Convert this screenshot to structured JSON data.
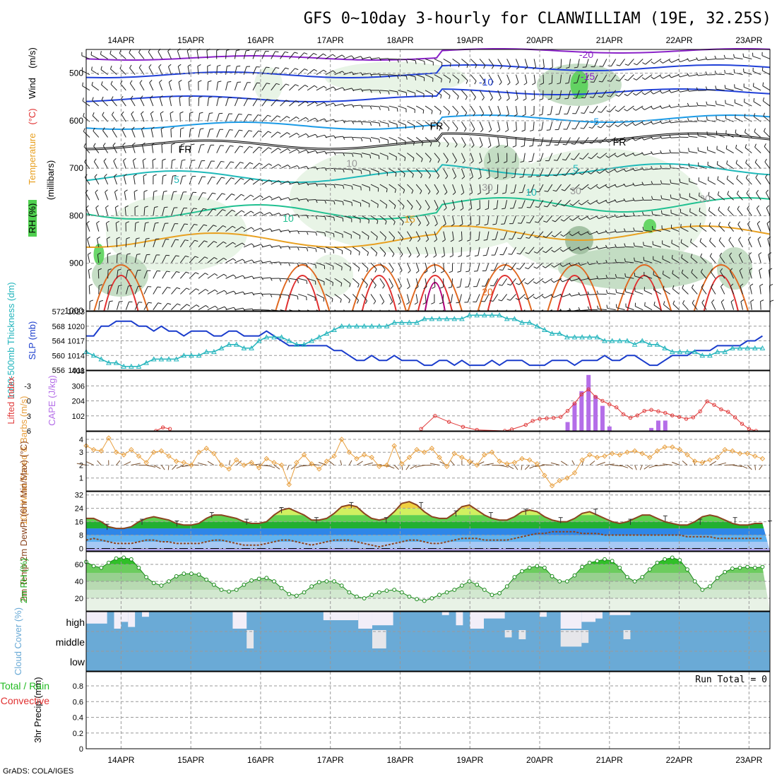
{
  "title": "GFS 0~10day 3-hourly for CLANWILLIAM (19E, 32.25S)",
  "footer": "GrADS: COLA/IGES",
  "days": [
    "14APR",
    "15APR",
    "16APR",
    "17APR",
    "18APR",
    "19APR",
    "20APR",
    "21APR",
    "22APR",
    "23APR"
  ],
  "colors": {
    "purple": "#8a22c8",
    "blue": "#2040d8",
    "lightblue": "#1c9be6",
    "teal": "#1fb9b9",
    "green": "#20c090",
    "orange": "#e8a020",
    "darkorange": "#e06820",
    "red": "#e03030",
    "magenta": "#b0007a",
    "rhLight": "#e4f2e2",
    "rhMid": "#bcd8bc",
    "rhDark": "#98b898",
    "rhGreen": "#50d050",
    "slp": "#1a3ccc",
    "thick": "#22b4bc",
    "cape": "#b46ee8",
    "li": "#e03a3a",
    "wind": "#e8a040",
    "temp": "#8b4520",
    "cloud": "#6aaad6"
  },
  "chart_data": [
    {
      "type": "heatmap",
      "panel": "upper-air",
      "ylabel_parts": [
        "RH (%)",
        "Temperature",
        "(°C)",
        "Wind",
        "(m/s)"
      ],
      "yaxis": "(millibars)",
      "yticks": [
        500,
        600,
        700,
        800,
        900,
        1000
      ],
      "ylim": [
        1000,
        450
      ],
      "contour_labels": [
        "-20",
        "-15",
        "-10",
        "-5",
        "FR",
        "FR",
        "FR",
        "5",
        "5",
        "10",
        "10",
        "15",
        "20",
        "10",
        "30",
        "30",
        "30"
      ]
    },
    {
      "type": "line",
      "panel": "slp-thickness",
      "left_label": "1000-500mb Thickness (dm)",
      "right_label": "SLP (mb)",
      "left_ticks": [
        556,
        560,
        564,
        568,
        572
      ],
      "right_ticks": [
        1011,
        1014,
        1017,
        1020,
        1023
      ],
      "series": [
        {
          "name": "SLP",
          "values": [
            1018,
            1018,
            1020,
            1020,
            1021,
            1021,
            1021,
            1020,
            1020,
            1019,
            1020,
            1019,
            1019,
            1018,
            1019,
            1019,
            1019,
            1018,
            1018,
            1019,
            1019,
            1018,
            1018,
            1018,
            1019,
            1018,
            1017,
            1016,
            1016,
            1016,
            1016,
            1016,
            1016,
            1015,
            1015,
            1014,
            1013,
            1013,
            1014,
            1013,
            1013,
            1014,
            1013,
            1013,
            1013,
            1012,
            1012,
            1013,
            1013,
            1012,
            1013,
            1012,
            1012,
            1012,
            1013,
            1012,
            1013,
            1013,
            1013,
            1012,
            1012,
            1012,
            1013,
            1013,
            1013,
            1012,
            1013,
            1013,
            1013,
            1014,
            1013,
            1013,
            1014,
            1014,
            1013,
            1012,
            1012,
            1013,
            1014,
            1014,
            1014,
            1015,
            1015,
            1015,
            1016,
            1016,
            1016,
            1016,
            1017,
            1017,
            1018
          ]
        },
        {
          "name": "Thickness",
          "values": [
            561,
            560,
            559,
            558,
            558,
            557,
            557,
            557,
            558,
            559,
            559,
            559,
            559,
            560,
            560,
            560,
            561,
            561,
            562,
            563,
            563,
            562,
            562,
            564,
            565,
            565,
            565,
            564,
            563,
            563,
            564,
            565,
            566,
            567,
            568,
            568,
            568,
            568,
            568,
            568,
            568,
            569,
            569,
            569,
            569,
            570,
            570,
            570,
            570,
            570,
            570,
            571,
            571,
            571,
            571,
            571,
            570,
            570,
            569,
            569,
            568,
            567,
            566,
            566,
            565,
            565,
            565,
            565,
            565,
            564,
            564,
            564,
            564,
            563,
            564,
            563,
            563,
            562,
            561,
            561,
            561,
            561,
            560,
            560,
            561,
            561,
            562,
            562,
            562,
            562,
            562
          ]
        }
      ]
    },
    {
      "type": "bar",
      "panel": "cape-li",
      "left_label": "Lifted Index",
      "right_label": "CAPE (J/kg)",
      "left_ticks": [
        "-3",
        "0",
        "3",
        "6"
      ],
      "right_ticks": [
        "102",
        "204",
        "306",
        "408"
      ],
      "cape_bars": [
        [
          20.4,
          60
        ],
        [
          20.5,
          190
        ],
        [
          20.6,
          270
        ],
        [
          20.7,
          380
        ],
        [
          20.8,
          240
        ],
        [
          20.9,
          170
        ],
        [
          21.0,
          30
        ],
        [
          21.6,
          20
        ],
        [
          21.7,
          70
        ],
        [
          21.8,
          70
        ]
      ],
      "li_values": [
        [
          14.5,
          6.0
        ],
        [
          14.6,
          5.3
        ],
        [
          14.7,
          5.6
        ],
        [
          18.3,
          5.6
        ],
        [
          18.5,
          3.0
        ],
        [
          18.7,
          4.2
        ],
        [
          18.9,
          5.2
        ],
        [
          19.1,
          5.8
        ],
        [
          19.5,
          6.0
        ],
        [
          19.6,
          5.7
        ],
        [
          19.8,
          4.8
        ],
        [
          19.9,
          4.0
        ],
        [
          20.0,
          3.6
        ],
        [
          20.1,
          3.5
        ],
        [
          20.2,
          3.4
        ],
        [
          20.3,
          3.2
        ],
        [
          20.4,
          2.0
        ],
        [
          20.5,
          0.5
        ],
        [
          20.6,
          -1.3
        ],
        [
          20.7,
          -2.3
        ],
        [
          20.8,
          -0.8
        ],
        [
          20.9,
          0.0
        ],
        [
          21.0,
          0.7
        ],
        [
          21.1,
          1.3
        ],
        [
          21.2,
          2.7
        ],
        [
          21.3,
          3.4
        ],
        [
          21.4,
          2.9
        ],
        [
          21.5,
          2.0
        ],
        [
          21.6,
          1.8
        ],
        [
          21.7,
          2.1
        ],
        [
          21.8,
          2.4
        ],
        [
          21.9,
          2.9
        ],
        [
          22.0,
          3.2
        ],
        [
          22.1,
          3.6
        ],
        [
          22.2,
          3.3
        ],
        [
          22.3,
          2.1
        ],
        [
          22.4,
          0.1
        ],
        [
          22.5,
          0.8
        ],
        [
          22.6,
          1.7
        ],
        [
          22.7,
          2.2
        ],
        [
          22.8,
          3.3
        ],
        [
          22.9,
          4.6
        ],
        [
          23.0,
          5.6
        ],
        [
          23.1,
          6.0
        ]
      ]
    },
    {
      "type": "line",
      "panel": "10m-wind",
      "left_label": "10m Wind Speed & Barbs (m/s)",
      "left_ticks": [
        "1",
        "2",
        "3",
        "4"
      ],
      "series": [
        {
          "name": "10m wind",
          "values": [
            3.5,
            3.2,
            3.1,
            4.1,
            3.0,
            2.8,
            3.2,
            2.7,
            2.2,
            3.0,
            3.1,
            2.7,
            2.3,
            2.2,
            2.0,
            3.0,
            3.3,
            2.9,
            2.0,
            1.7,
            2.4,
            2.0,
            2.2,
            1.8,
            2.5,
            2.2,
            2.0,
            0.5,
            2.2,
            2.8,
            2.1,
            1.7,
            2.3,
            2.7,
            4.0,
            3.0,
            2.5,
            2.8,
            2.6,
            1.9,
            2.0,
            3.5,
            2.1,
            2.6,
            3.2,
            3.0,
            3.3,
            2.6,
            1.9,
            2.9,
            2.6,
            2.3,
            2.0,
            2.8,
            3.0,
            2.3,
            2.1,
            2.2,
            2.5,
            2.4,
            2.1,
            1.2,
            0.4,
            0.8,
            1.0,
            1.4,
            2.4,
            2.8,
            2.6,
            2.7,
            2.9,
            2.8,
            3.0,
            3.1,
            2.9,
            2.6,
            3.1,
            3.4,
            3.4,
            3.2,
            2.8,
            2.3,
            2.2,
            2.4,
            2.6,
            3.2,
            3.1,
            2.9,
            2.9,
            2.7,
            2.5
          ]
        }
      ]
    },
    {
      "type": "area",
      "panel": "2m-temp",
      "left_label": "2m Temp 2m DewPt (6hr Min/Max) (°C)",
      "left_ticks": [
        "0",
        "8",
        "16",
        "24",
        "32"
      ],
      "series": [
        {
          "name": "2m Temp",
          "values": [
            18,
            18,
            16,
            13,
            12,
            12,
            13,
            16,
            18,
            19,
            18,
            17,
            15,
            14,
            14,
            15,
            18,
            20,
            20,
            19,
            18,
            16,
            15,
            15,
            16,
            20,
            23,
            24,
            22,
            20,
            17,
            17,
            18,
            21,
            25,
            26,
            25,
            21,
            18,
            17,
            18,
            22,
            27,
            28,
            26,
            22,
            19,
            18,
            18,
            21,
            25,
            26,
            23,
            20,
            18,
            17,
            17,
            19,
            22,
            23,
            22,
            19,
            17,
            16,
            16,
            18,
            21,
            22,
            20,
            18,
            16,
            15,
            16,
            18,
            20,
            20,
            18,
            16,
            15,
            14,
            14,
            16,
            19,
            20,
            19,
            17,
            15,
            14,
            14,
            15,
            15
          ]
        },
        {
          "name": "2m DewPt",
          "values": [
            5,
            6,
            5,
            4,
            3,
            3,
            3,
            4,
            5,
            5,
            4,
            4,
            3,
            3,
            3,
            3,
            4,
            5,
            5,
            4,
            3,
            2,
            2,
            2,
            3,
            4,
            5,
            5,
            4,
            3,
            2,
            3,
            4,
            5,
            5,
            5,
            4,
            3,
            2,
            1,
            2,
            3,
            4,
            5,
            5,
            4,
            3,
            3,
            4,
            5,
            6,
            6,
            6,
            5,
            5,
            5,
            5,
            6,
            7,
            8,
            9,
            9,
            10,
            10,
            10,
            10,
            9,
            9,
            9,
            8,
            8,
            8,
            8,
            8,
            8,
            8,
            8,
            8,
            8,
            8,
            7,
            7,
            7,
            7,
            6,
            6,
            6,
            6,
            6,
            6,
            6
          ]
        }
      ]
    },
    {
      "type": "area",
      "panel": "2m-rh",
      "left_label": "2m RH (%)",
      "left_ticks": [
        "20",
        "40",
        "60"
      ],
      "series": [
        {
          "name": "2m RH",
          "values": [
            63,
            58,
            56,
            62,
            67,
            68,
            66,
            56,
            45,
            38,
            35,
            40,
            46,
            49,
            49,
            48,
            42,
            36,
            30,
            28,
            30,
            36,
            41,
            43,
            44,
            40,
            32,
            25,
            23,
            27,
            34,
            39,
            40,
            40,
            35,
            27,
            22,
            20,
            24,
            27,
            29,
            30,
            27,
            22,
            19,
            17,
            20,
            24,
            27,
            30,
            35,
            40,
            36,
            30,
            24,
            26,
            34,
            45,
            52,
            56,
            58,
            56,
            46,
            40,
            40,
            47,
            57,
            62,
            64,
            66,
            64,
            56,
            45,
            40,
            45,
            54,
            62,
            66,
            68,
            65,
            54,
            40,
            30,
            34,
            44,
            51,
            55,
            56,
            57,
            56,
            57
          ]
        }
      ]
    },
    {
      "type": "heatmap",
      "panel": "cloud-cover",
      "left_label": "Cloud Cover (%)",
      "levels": [
        "high",
        "middle",
        "low"
      ]
    },
    {
      "type": "bar",
      "panel": "precip",
      "left_label": "3hr Precip (mm)",
      "legend_lines": [
        "Total / Rain",
        "Convective"
      ],
      "left_ticks": [
        "0",
        "0.2",
        "0.4",
        "0.6",
        "0.8"
      ],
      "run_total": "Run Total = 0"
    }
  ]
}
